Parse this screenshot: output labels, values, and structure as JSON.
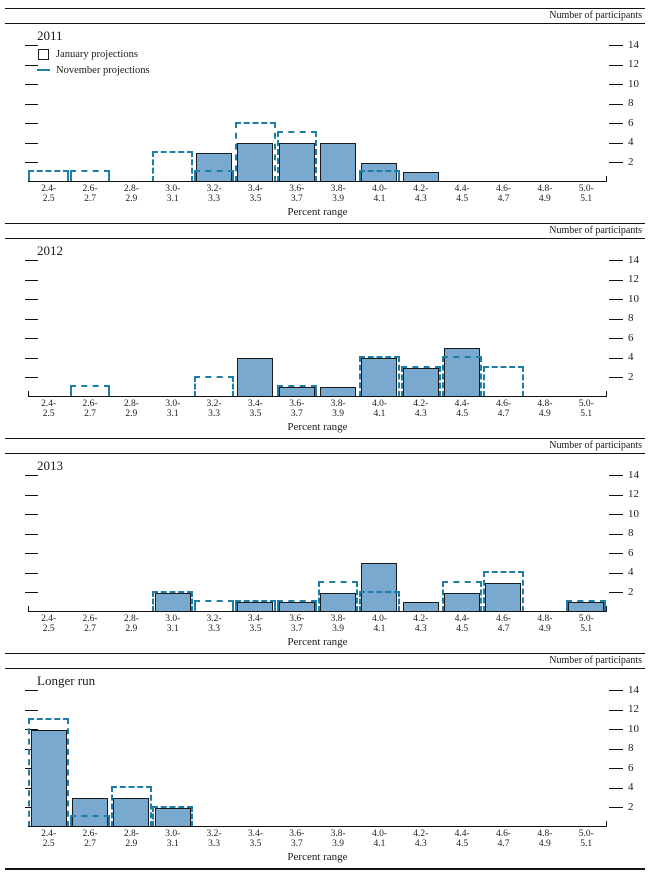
{
  "figure": {
    "right_axis_label": "Number of participants",
    "xlabel": "Percent range",
    "legend": {
      "january": "January projections",
      "november": "November projections"
    },
    "colors": {
      "bar_fill": "#79a9ce",
      "bar_border": "#1a1a1a",
      "dashed_outline": "#1d7fa8",
      "rule": "#111111"
    }
  },
  "chart_data": [
    {
      "type": "bar",
      "title": "2011",
      "xlabel": "Percent range",
      "ylabel": "Number of participants",
      "yticks": [
        2,
        4,
        6,
        8,
        10,
        12,
        14
      ],
      "ylim": [
        0,
        16
      ],
      "grid": false,
      "legend_position": "top-left",
      "categories": [
        "2.4-2.5",
        "2.6-2.7",
        "2.8-2.9",
        "3.0-3.1",
        "3.2-3.3",
        "3.4-3.5",
        "3.6-3.7",
        "3.8-3.9",
        "4.0-4.1",
        "4.2-4.3",
        "4.4-4.5",
        "4.6-4.7",
        "4.8-4.9",
        "5.0-5.1"
      ],
      "series": [
        {
          "name": "January projections",
          "style": "solid-bar",
          "values": [
            0,
            0,
            0,
            0,
            3,
            4,
            4,
            4,
            2,
            1,
            0,
            0,
            0,
            0
          ]
        },
        {
          "name": "November projections",
          "style": "dashed-outline",
          "values": [
            1,
            1,
            0,
            3,
            1,
            6,
            5,
            0,
            1,
            0,
            0,
            0,
            0,
            0
          ]
        }
      ]
    },
    {
      "type": "bar",
      "title": "2012",
      "xlabel": "Percent range",
      "ylabel": "Number of participants",
      "yticks": [
        2,
        4,
        6,
        8,
        10,
        12,
        14
      ],
      "ylim": [
        0,
        16
      ],
      "grid": false,
      "categories": [
        "2.4-2.5",
        "2.6-2.7",
        "2.8-2.9",
        "3.0-3.1",
        "3.2-3.3",
        "3.4-3.5",
        "3.6-3.7",
        "3.8-3.9",
        "4.0-4.1",
        "4.2-4.3",
        "4.4-4.5",
        "4.6-4.7",
        "4.8-4.9",
        "5.0-5.1"
      ],
      "series": [
        {
          "name": "January projections",
          "style": "solid-bar",
          "values": [
            0,
            0,
            0,
            0,
            0,
            4,
            1,
            1,
            4,
            3,
            5,
            0,
            0,
            0
          ]
        },
        {
          "name": "November projections",
          "style": "dashed-outline",
          "values": [
            0,
            1,
            0,
            0,
            2,
            0,
            1,
            0,
            4,
            3,
            4,
            3,
            0,
            0
          ]
        }
      ]
    },
    {
      "type": "bar",
      "title": "2013",
      "xlabel": "Percent range",
      "ylabel": "Number of participants",
      "yticks": [
        2,
        4,
        6,
        8,
        10,
        12,
        14
      ],
      "ylim": [
        0,
        16
      ],
      "grid": false,
      "categories": [
        "2.4-2.5",
        "2.6-2.7",
        "2.8-2.9",
        "3.0-3.1",
        "3.2-3.3",
        "3.4-3.5",
        "3.6-3.7",
        "3.8-3.9",
        "4.0-4.1",
        "4.2-4.3",
        "4.4-4.5",
        "4.6-4.7",
        "4.8-4.9",
        "5.0-5.1"
      ],
      "series": [
        {
          "name": "January projections",
          "style": "solid-bar",
          "values": [
            0,
            0,
            0,
            2,
            0,
            1,
            1,
            2,
            5,
            1,
            2,
            3,
            0,
            1
          ]
        },
        {
          "name": "November projections",
          "style": "dashed-outline",
          "values": [
            0,
            0,
            0,
            2,
            1,
            1,
            1,
            3,
            2,
            0,
            3,
            4,
            0,
            1
          ]
        }
      ]
    },
    {
      "type": "bar",
      "title": "Longer run",
      "xlabel": "Percent range",
      "ylabel": "Number of participants",
      "yticks": [
        2,
        4,
        6,
        8,
        10,
        12,
        14
      ],
      "ylim": [
        0,
        16
      ],
      "grid": false,
      "categories": [
        "2.4-2.5",
        "2.6-2.7",
        "2.8-2.9",
        "3.0-3.1",
        "3.2-3.3",
        "3.4-3.5",
        "3.6-3.7",
        "3.8-3.9",
        "4.0-4.1",
        "4.2-4.3",
        "4.4-4.5",
        "4.6-4.7",
        "4.8-4.9",
        "5.0-5.1"
      ],
      "series": [
        {
          "name": "January projections",
          "style": "solid-bar",
          "values": [
            10,
            3,
            3,
            2,
            0,
            0,
            0,
            0,
            0,
            0,
            0,
            0,
            0,
            0
          ]
        },
        {
          "name": "November projections",
          "style": "dashed-outline",
          "values": [
            11,
            1,
            4,
            2,
            0,
            0,
            0,
            0,
            0,
            0,
            0,
            0,
            0,
            0
          ]
        }
      ]
    }
  ]
}
